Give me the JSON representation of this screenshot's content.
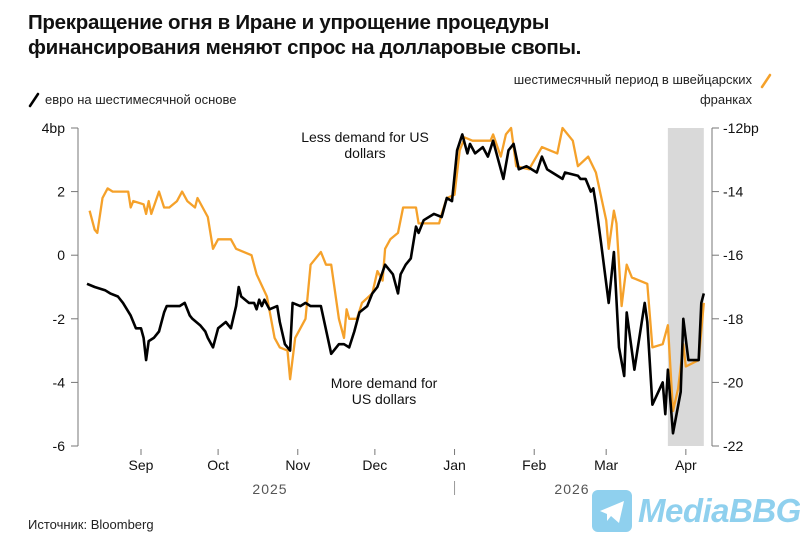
{
  "title_line1": "Прекращение огня в Иране и упрощение процедуры",
  "title_line2": "финансирования меняют спрос на долларовые свопы.",
  "source": "Источник: Bloomberg",
  "watermark": "MediaBBG",
  "colors": {
    "euro": "#000000",
    "chf": "#f5a12a",
    "highlight": "#d9d9d9",
    "watermark": "#8fd0ee"
  },
  "chart_data": {
    "type": "line",
    "x_unit": "days since 2025-09-01",
    "x_range": [
      -21,
      219
    ],
    "highlight_range": [
      205,
      219
    ],
    "annotations": [
      {
        "line1": "Less demand for US",
        "line2": "dollars"
      },
      {
        "line1": "More demand for",
        "line2": "US dollars"
      }
    ],
    "left_axis": {
      "ticks": [
        4,
        2,
        0,
        -2,
        -4,
        -6
      ],
      "labels": [
        "4bp",
        "2",
        "0",
        "-2",
        "-4",
        "-6"
      ],
      "range": [
        -6,
        4
      ]
    },
    "right_axis": {
      "ticks": [
        -12,
        -14,
        -16,
        -18,
        -20,
        -22
      ],
      "labels": [
        "-12bp",
        "-14",
        "-16",
        "-18",
        "-20",
        "-22"
      ],
      "range": [
        -22,
        -12
      ]
    },
    "x_ticks": [
      {
        "day": 0,
        "label": "Sep"
      },
      {
        "day": 30,
        "label": "Oct"
      },
      {
        "day": 61,
        "label": "Nov"
      },
      {
        "day": 91,
        "label": "Dec"
      },
      {
        "day": 122,
        "label": "Jan"
      },
      {
        "day": 153,
        "label": "Feb"
      },
      {
        "day": 181,
        "label": "Mar"
      },
      {
        "day": 212,
        "label": "Apr"
      }
    ],
    "years": [
      {
        "label": "2025"
      },
      {
        "label": "2026"
      }
    ],
    "series": [
      {
        "name": "евро на шестимесячной основе",
        "axis": "left",
        "color": "#000000",
        "x": [
          -21,
          -18,
          -14,
          -12,
          -9,
          -7,
          -4,
          -2,
          0,
          1,
          2,
          3,
          5,
          7,
          9,
          10,
          12,
          15,
          17,
          19,
          20,
          23,
          25,
          26,
          28,
          30,
          33,
          35,
          37,
          38,
          39,
          42,
          44,
          45,
          46,
          47,
          48,
          50,
          53,
          54,
          56,
          58,
          59,
          62,
          64,
          66,
          70,
          74,
          77,
          79,
          81,
          83,
          85,
          88,
          90,
          92,
          95,
          98,
          100,
          101,
          103,
          105,
          107,
          108,
          110,
          114,
          117,
          119,
          121,
          123,
          125,
          127,
          128,
          130,
          133,
          135,
          137,
          139,
          141,
          143,
          145,
          147,
          150,
          154,
          156,
          158,
          160,
          164,
          165,
          170,
          171,
          173,
          175,
          176,
          177,
          179,
          182,
          184,
          186,
          188,
          189,
          192,
          196,
          197,
          199,
          203,
          204,
          205,
          207,
          210,
          211,
          213,
          217,
          218,
          219
        ],
        "y": [
          -0.9,
          -1.0,
          -1.1,
          -1.2,
          -1.3,
          -1.5,
          -1.9,
          -2.3,
          -2.3,
          -2.6,
          -3.3,
          -2.7,
          -2.6,
          -2.4,
          -1.8,
          -1.6,
          -1.6,
          -1.6,
          -1.5,
          -1.9,
          -2.0,
          -2.2,
          -2.4,
          -2.6,
          -2.9,
          -2.3,
          -2.1,
          -2.3,
          -1.6,
          -1.0,
          -1.3,
          -1.5,
          -1.5,
          -1.7,
          -1.4,
          -1.6,
          -1.4,
          -1.7,
          -1.6,
          -2.1,
          -2.8,
          -3.0,
          -1.5,
          -1.6,
          -1.5,
          -1.6,
          -1.6,
          -3.1,
          -2.8,
          -2.8,
          -2.9,
          -2.4,
          -1.8,
          -1.6,
          -1.2,
          -1.0,
          -0.3,
          -0.6,
          -1.2,
          -0.6,
          -0.3,
          -0.1,
          0.9,
          0.7,
          1.1,
          1.3,
          1.2,
          1.8,
          1.7,
          3.3,
          3.8,
          3.2,
          3.5,
          3.2,
          3.4,
          3.1,
          3.6,
          3.0,
          2.4,
          3.3,
          3.5,
          2.7,
          2.8,
          2.6,
          3.1,
          2.7,
          2.6,
          2.4,
          2.6,
          2.5,
          2.4,
          2.4,
          2.0,
          2.1,
          1.6,
          0.4,
          -1.5,
          0.1,
          -2.9,
          -3.8,
          -1.8,
          -3.6,
          -1.5,
          -2.1,
          -4.7,
          -4.0,
          -5.0,
          -3.6,
          -5.6,
          -4.3,
          -2.0,
          -3.3,
          -3.3,
          -1.5,
          -1.2
        ]
      },
      {
        "name": "шестимесячный период в швейцарских франках",
        "name_line1": "шестимесячный период в швейцарских",
        "name_line2": "франках",
        "axis": "right",
        "color": "#f5a12a",
        "x": [
          -20,
          -18,
          -17,
          -15,
          -13,
          -11,
          -5,
          -4,
          -3,
          1,
          2,
          3,
          4,
          7,
          9,
          11,
          14,
          16,
          18,
          21,
          22,
          26,
          28,
          30,
          35,
          37,
          43,
          45,
          49,
          52,
          54,
          57,
          58,
          60,
          64,
          66,
          70,
          72,
          74,
          77,
          79,
          80,
          81,
          84,
          86,
          90,
          92,
          94,
          95,
          97,
          100,
          102,
          107,
          108,
          116,
          117,
          119,
          122,
          124,
          126,
          129,
          136,
          137,
          140,
          142,
          144,
          146,
          151,
          156,
          162,
          164,
          168,
          170,
          174,
          177,
          181,
          182,
          184,
          185,
          187,
          189,
          191,
          197,
          199,
          203,
          205,
          207,
          209,
          211,
          212,
          217,
          219
        ],
        "y": [
          -14.6,
          -15.2,
          -15.3,
          -14.2,
          -13.9,
          -14.0,
          -14.0,
          -14.5,
          -14.3,
          -14.4,
          -14.7,
          -14.3,
          -14.7,
          -14.0,
          -14.5,
          -14.5,
          -14.3,
          -14.0,
          -14.3,
          -14.5,
          -14.2,
          -14.8,
          -15.8,
          -15.5,
          -15.5,
          -15.8,
          -16.0,
          -16.6,
          -17.3,
          -18.6,
          -18.9,
          -19.0,
          -19.9,
          -18.6,
          -18.0,
          -16.3,
          -15.9,
          -16.3,
          -16.3,
          -18.0,
          -18.6,
          -17.7,
          -18.0,
          -18.0,
          -17.5,
          -17.2,
          -16.5,
          -16.8,
          -15.8,
          -15.5,
          -15.3,
          -14.5,
          -14.5,
          -15.0,
          -15.0,
          -14.7,
          -14.2,
          -14.1,
          -12.7,
          -12.3,
          -12.4,
          -12.4,
          -12.2,
          -12.9,
          -12.2,
          -12.0,
          -13.2,
          -13.3,
          -12.6,
          -12.8,
          -12.0,
          -12.4,
          -13.2,
          -12.9,
          -13.4,
          -14.9,
          -15.8,
          -14.6,
          -15.0,
          -17.6,
          -16.3,
          -16.7,
          -16.9,
          -18.9,
          -18.8,
          -18.2,
          -20.9,
          -20.2,
          -18.8,
          -19.5,
          -19.3,
          -17.5
        ]
      }
    ]
  }
}
